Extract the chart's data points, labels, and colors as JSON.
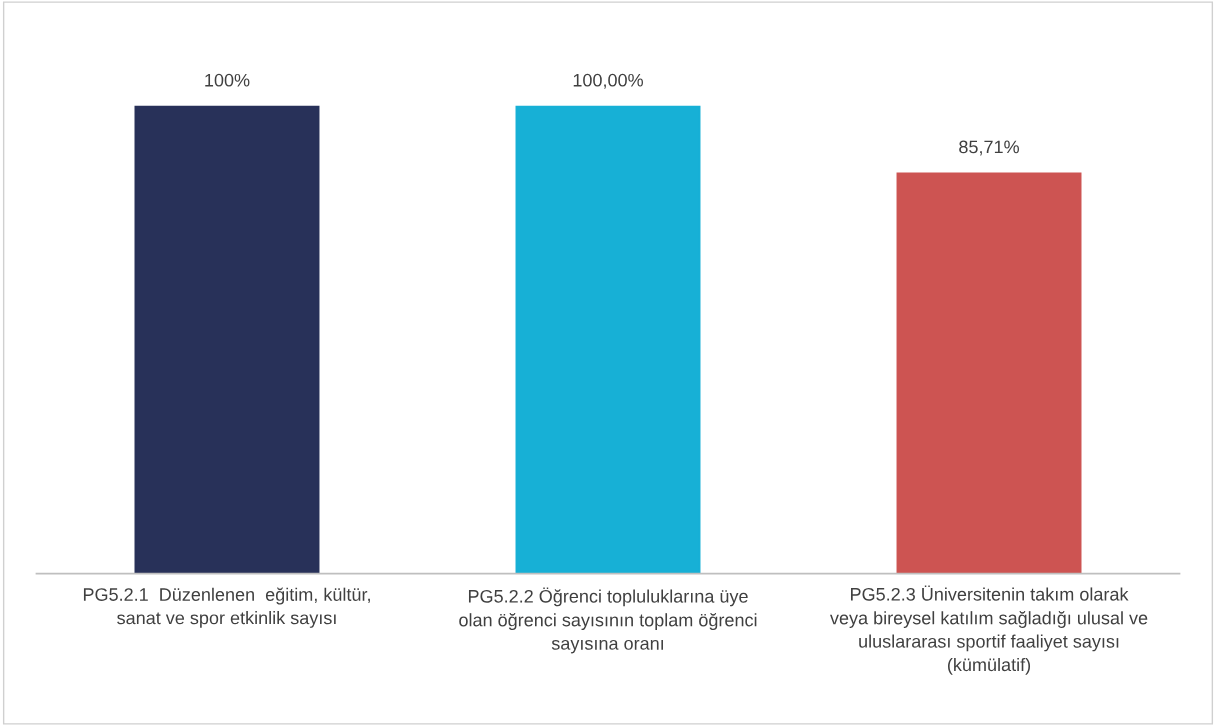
{
  "chart_data": {
    "type": "bar",
    "categories": [
      "PG5.2.1  Düzenlenen  eğitim, kültür,\nsanat ve spor etkinlik sayısı",
      "PG5.2.2 Öğrenci topluluklarına üye\nolan öğrenci sayısının toplam öğrenci\nsayısına oranı",
      "PG5.2.3 Üniversitenin takım olarak\nveya bireysel katılım sağladığı ulusal ve\nuluslararası sportif faaliyet sayısı\n(kümülatif)"
    ],
    "values": [
      100,
      100,
      85.71
    ],
    "colors": [
      "#283159",
      "#17b0d6",
      "#cd5452"
    ],
    "value_labels": [
      "100%",
      "100,00%",
      "85,71%"
    ],
    "grid": false,
    "legend": false
  }
}
